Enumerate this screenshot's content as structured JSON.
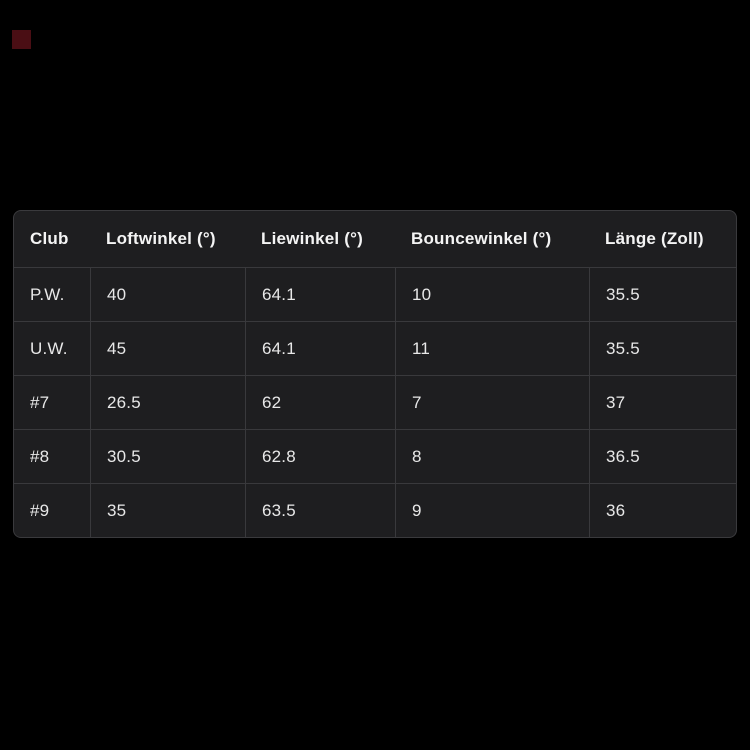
{
  "page": {
    "background_color": "#000000"
  },
  "decor": {
    "red_mark_color": "#4a0e14"
  },
  "colors": {
    "table_background": "#1e1e20",
    "table_border": "#39393c",
    "header_text": "#f4f4f4",
    "cell_text": "#e8e8e8"
  },
  "table": {
    "columns": [
      "Club",
      "Loftwinkel (°)",
      "Liewinkel (°)",
      "Bouncewinkel (°)",
      "Länge (Zoll)"
    ],
    "rows": [
      [
        "P.W.",
        "40",
        "64.1",
        "10",
        "35.5"
      ],
      [
        "U.W.",
        "45",
        "64.1",
        "11",
        "35.5"
      ],
      [
        "#7",
        "26.5",
        "62",
        "7",
        "37"
      ],
      [
        "#8",
        "30.5",
        "62.8",
        "8",
        "36.5"
      ],
      [
        "#9",
        "35",
        "63.5",
        "9",
        "36"
      ]
    ]
  }
}
